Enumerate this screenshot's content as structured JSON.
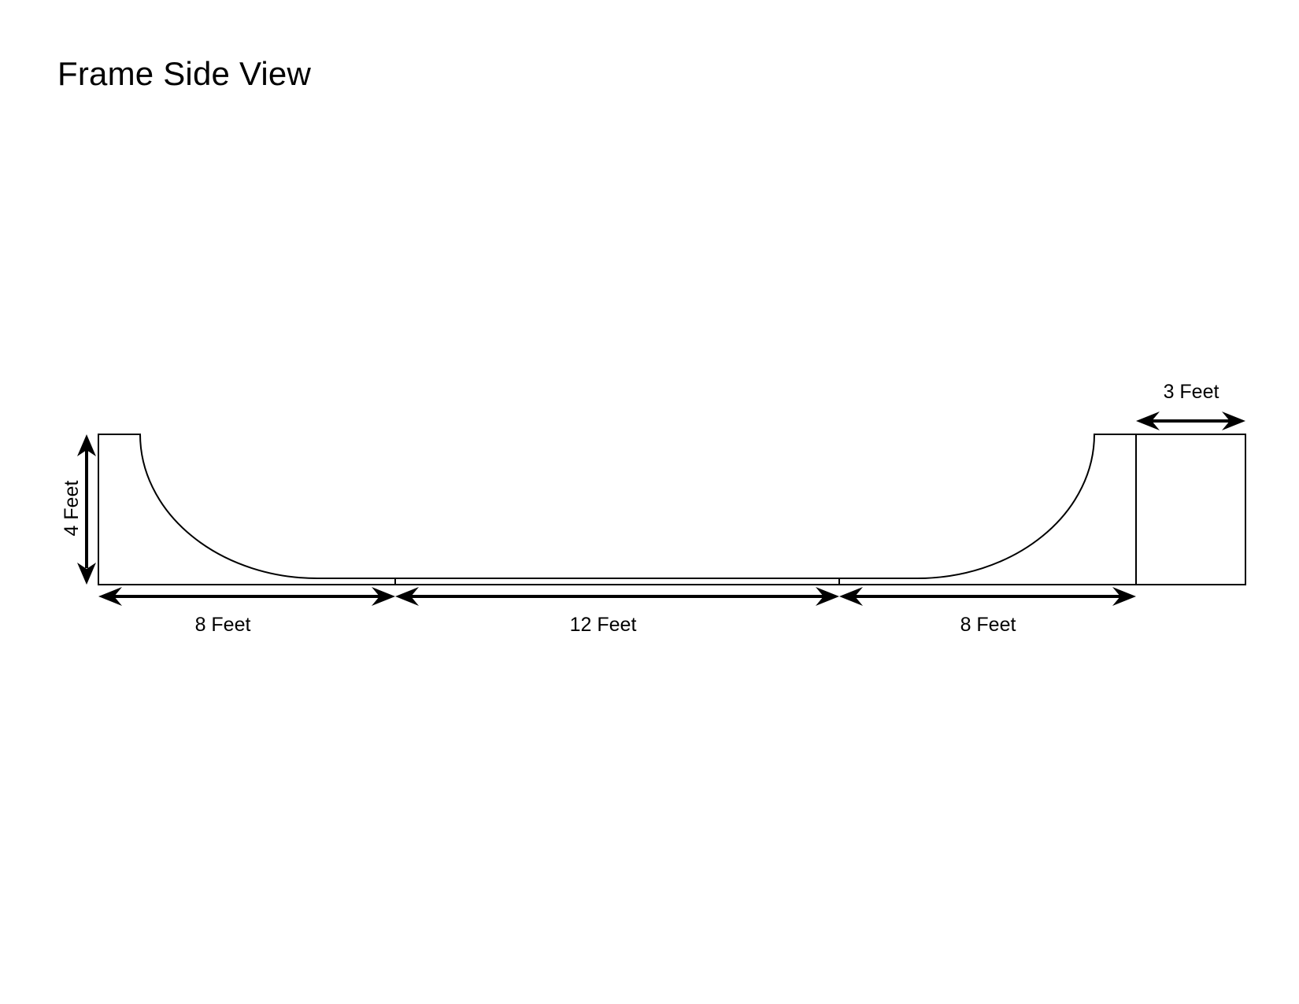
{
  "title": "Frame Side View",
  "dimensions": {
    "height_left": "4 Feet",
    "left_section": "8 Feet",
    "middle_section": "12 Feet",
    "right_section": "8 Feet",
    "platform": "3 Feet"
  },
  "colors": {
    "line": "#000000",
    "background": "#ffffff"
  }
}
